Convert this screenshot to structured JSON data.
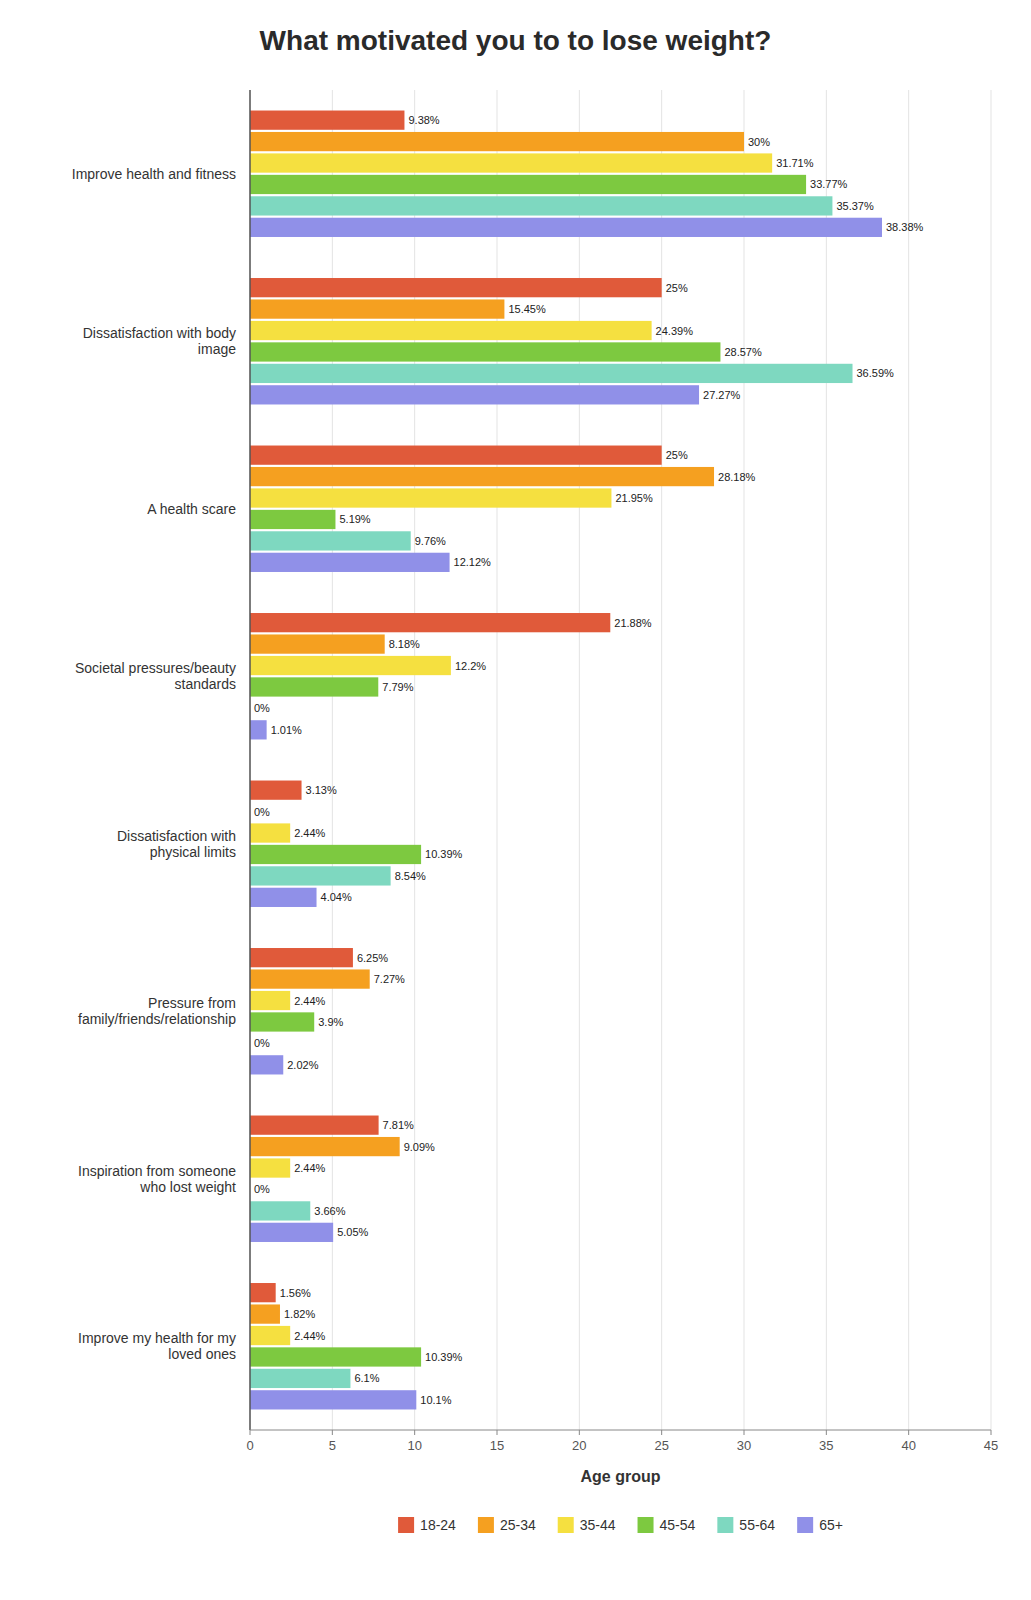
{
  "chart_data": {
    "type": "bar",
    "orientation": "horizontal",
    "title": "What motivated you to to lose weight?",
    "categories": [
      "Improve health and fitness",
      "Dissatisfaction with body\nimage",
      "A health scare",
      "Societal pressures/beauty\nstandards",
      "Dissatisfaction with\nphysical limits",
      "Pressure from\nfamily/friends/relationship",
      "Inspiration from someone\nwho lost weight",
      "Improve my health for my\nloved ones"
    ],
    "series": [
      {
        "name": "18-24",
        "color": "#E05A3A",
        "values": [
          9.38,
          25,
          25,
          21.88,
          3.13,
          6.25,
          7.81,
          1.56
        ],
        "value_labels": [
          "9.38%",
          "25%",
          "25%",
          "21.88%",
          "3.13%",
          "6.25%",
          "7.81%",
          "1.56%"
        ]
      },
      {
        "name": "25-34",
        "color": "#F5A020",
        "values": [
          30,
          15.45,
          28.18,
          8.18,
          0,
          7.27,
          9.09,
          1.82
        ],
        "value_labels": [
          "30%",
          "15.45%",
          "28.18%",
          "8.18%",
          "0%",
          "7.27%",
          "9.09%",
          "1.82%"
        ]
      },
      {
        "name": "35-44",
        "color": "#F5E040",
        "values": [
          31.71,
          24.39,
          21.95,
          12.2,
          2.44,
          2.44,
          2.44,
          2.44
        ],
        "value_labels": [
          "31.71%",
          "24.39%",
          "21.95%",
          "12.2%",
          "2.44%",
          "2.44%",
          "2.44%",
          "2.44%"
        ]
      },
      {
        "name": "45-54",
        "color": "#7DC940",
        "values": [
          33.77,
          28.57,
          5.19,
          7.79,
          10.39,
          3.9,
          0,
          10.39
        ],
        "value_labels": [
          "33.77%",
          "28.57%",
          "5.19%",
          "7.79%",
          "10.39%",
          "3.9%",
          "0%",
          "10.39%"
        ]
      },
      {
        "name": "55-64",
        "color": "#7ED8C0",
        "values": [
          35.37,
          36.59,
          9.76,
          0,
          8.54,
          0,
          3.66,
          6.1
        ],
        "value_labels": [
          "35.37%",
          "36.59%",
          "9.76%",
          "0%",
          "8.54%",
          "0%",
          "3.66%",
          "6.1%"
        ]
      },
      {
        "name": "65+",
        "color": "#9090E8",
        "values": [
          38.38,
          27.27,
          12.12,
          1.01,
          4.04,
          2.02,
          5.05,
          10.1
        ],
        "value_labels": [
          "38.38%",
          "27.27%",
          "12.12%",
          "1.01%",
          "4.04%",
          "2.02%",
          "5.05%",
          "10.1%"
        ]
      }
    ],
    "xlabel": "Age group",
    "xlim": [
      0,
      45
    ],
    "xticks": [
      0,
      5,
      10,
      15,
      20,
      25,
      30,
      35,
      40,
      45
    ],
    "grid": true,
    "data_labels": true,
    "legend": "bottom"
  }
}
